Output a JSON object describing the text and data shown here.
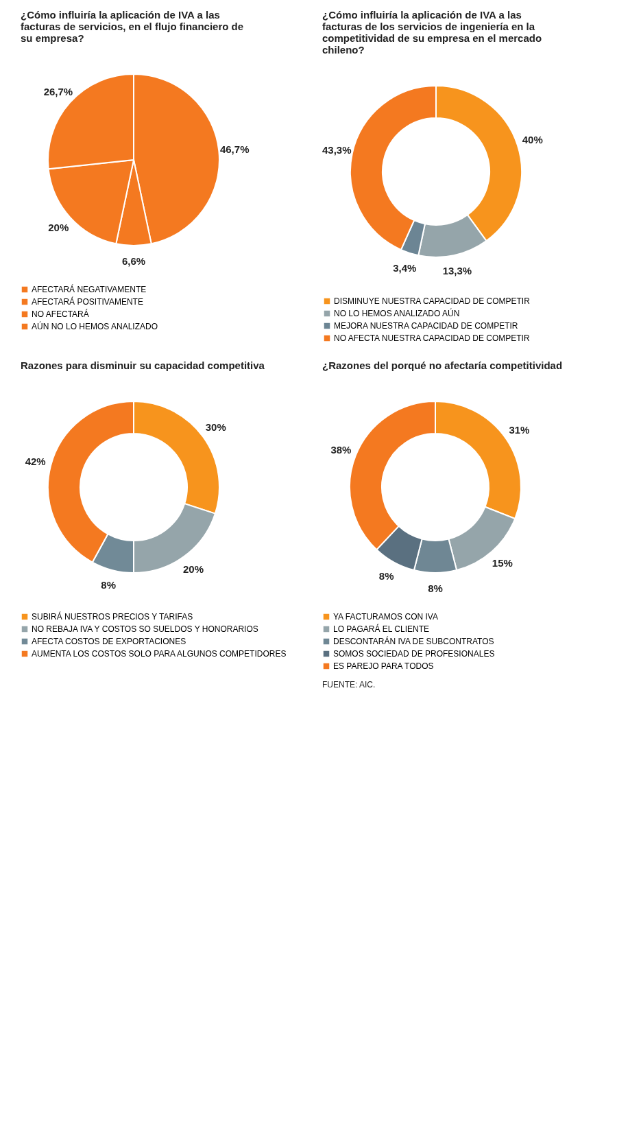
{
  "chart_data": [
    {
      "type": "pie",
      "title": "¿Cómo influiría la aplicación de IVA a las facturas de servicios, en el flujo financiero de su empresa?",
      "categories": [
        "AFECTARÁ NEGATIVAMENTE",
        "AFECTARÁ POSITIVAMENTE",
        "NO AFECTARÁ",
        "AÚN NO LO HEMOS ANALIZADO"
      ],
      "values": [
        46.7,
        6.6,
        20,
        26.7
      ],
      "value_labels": [
        "46,7%",
        "6,6%",
        "20%",
        "26,7%"
      ],
      "colors": [
        "#f47920",
        "#f47920",
        "#f47920",
        "#f47920"
      ],
      "legend": "bottom"
    },
    {
      "type": "donut",
      "title": "¿Cómo influiría la aplicación de IVA a las facturas de los servicios de ingeniería en la competitividad de su empresa en el mercado chileno?",
      "categories": [
        "DISMINUYE NUESTRA CAPACIDAD DE COMPETIR",
        "NO LO HEMOS ANALIZADO AÚN",
        "MEJORA NUESTRA CAPACIDAD DE COMPETIR",
        "NO AFECTA NUESTRA CAPACIDAD DE COMPETIR"
      ],
      "values": [
        40,
        13.3,
        3.4,
        43.3
      ],
      "value_labels": [
        "40%",
        "13,3%",
        "3,4%",
        "43,3%"
      ],
      "colors": [
        "#f7941d",
        "#95a5aa",
        "#6c8594",
        "#f47920"
      ],
      "legend": "bottom"
    },
    {
      "type": "donut",
      "title": "Razones para disminuir su capacidad competitiva",
      "categories": [
        "SUBIRÁ NUESTROS PRECIOS Y TARIFAS",
        "NO REBAJA IVA Y COSTOS SO SUELDOS Y HONORARIOS",
        "AFECTA COSTOS DE EXPORTACIONES",
        "AUMENTA LOS COSTOS SOLO PARA ALGUNOS COMPETIDORES"
      ],
      "values": [
        30,
        20,
        8,
        42
      ],
      "value_labels": [
        "30%",
        "20%",
        "8%",
        "42%"
      ],
      "colors": [
        "#f7941d",
        "#95a5aa",
        "#718a97",
        "#f47920"
      ],
      "legend": "bottom"
    },
    {
      "type": "donut",
      "title": "¿Razones del porqué no afectaría competitividad",
      "categories": [
        "YA FACTURAMOS CON IVA",
        "LO PAGARÁ EL CLIENTE",
        "DESCONTARÁN IVA DE SUBCONTRATOS",
        "SOMOS SOCIEDAD DE PROFESIONALES",
        "ES PAREJO PARA TODOS"
      ],
      "values": [
        31,
        15,
        8,
        8,
        38
      ],
      "value_labels": [
        "31%",
        "15%",
        "8%",
        "8%",
        "38%"
      ],
      "colors": [
        "#f7941d",
        "#95a5aa",
        "#6f8794",
        "#5a7080",
        "#f47920"
      ],
      "legend": "bottom",
      "annotations": [
        "FUENTE: AIC."
      ]
    }
  ]
}
